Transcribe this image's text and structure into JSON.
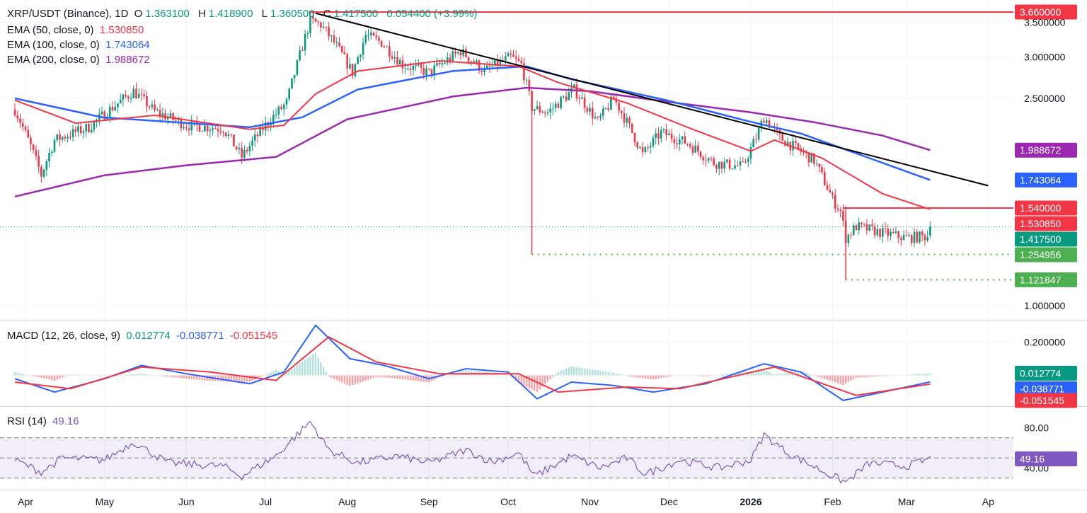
{
  "header": {
    "symbol": "XRP/USDT (Binance), 1D",
    "o_label": "O",
    "o_value": "1.363100",
    "h_label": "H",
    "h_value": "1.418900",
    "l_label": "L",
    "l_value": "1.360500",
    "c_label": "C",
    "c_value": "1.417500",
    "change": "0.054400 (+3.99%)"
  },
  "indicators": {
    "ema50": {
      "label": "EMA (50, close, 0)",
      "value": "1.530850",
      "color": "#f23645"
    },
    "ema100": {
      "label": "EMA (100, close, 0)",
      "value": "1.743064",
      "color": "#2962ff"
    },
    "ema200": {
      "label": "EMA (200, close, 0)",
      "value": "1.988672",
      "color": "#9c27b0"
    },
    "macd": {
      "label": "MACD (12, 26, close, 9)",
      "hist": "0.012774",
      "macd": "-0.038771",
      "signal": "-0.051545"
    },
    "rsi": {
      "label": "RSI (14)",
      "value": "49.16",
      "color": "#7e57c2"
    }
  },
  "colors": {
    "up": "#089981",
    "down": "#f23645",
    "trend": "#000000",
    "support": "#4caf50"
  },
  "chart_data": {
    "type": "candlestick",
    "x_ticks": [
      "Apr",
      "May",
      "Jun",
      "Jul",
      "Aug",
      "Sep",
      "Oct",
      "Nov",
      "Dec",
      "2026",
      "Feb",
      "Mar",
      "Ap"
    ],
    "price_ticks": [
      "3.500000",
      "3.000000",
      "2.500000",
      "1.000000"
    ],
    "price_scale": "log",
    "price_range": [
      0.94,
      3.8
    ],
    "price_tags": [
      {
        "label": "3.660000",
        "value": 3.66,
        "color": "#f23645"
      },
      {
        "label": "1.988672",
        "value": 1.988672,
        "color": "#9c27b0"
      },
      {
        "label": "1.743064",
        "value": 1.743064,
        "color": "#2962ff"
      },
      {
        "label": "1.540000",
        "value": 1.54,
        "color": "#f23645"
      },
      {
        "label": "1.530850",
        "value": 1.53085,
        "color": "#f23645"
      },
      {
        "label": "1.417500",
        "value": 1.4175,
        "color": "#089981"
      },
      {
        "label": "1.254956",
        "value": 1.254956,
        "color": "#4caf50"
      },
      {
        "label": "1.121847",
        "value": 1.121847,
        "color": "#4caf50"
      }
    ],
    "levels": [
      {
        "name": "resistance-high",
        "value": 3.66,
        "from": "2025-07-18",
        "to": "2026-04-10"
      },
      {
        "name": "resistance-1.54",
        "value": 1.54,
        "from": "2026-02-05",
        "to": "2026-04-10"
      },
      {
        "name": "support-1.2549",
        "value": 1.254956,
        "from": "2025-10-10",
        "to": "2026-04-10"
      },
      {
        "name": "support-1.1218",
        "value": 1.121847,
        "from": "2026-02-06",
        "to": "2026-04-10"
      }
    ],
    "trendline": {
      "from": {
        "date": "2025-07-20",
        "price": 3.64
      },
      "to": {
        "date": "2026-04-01",
        "price": 1.7
      }
    },
    "price_path": [
      [
        "2025-03-28",
        2.38
      ],
      [
        "2025-04-07",
        1.78
      ],
      [
        "2025-04-12",
        2.08
      ],
      [
        "2025-04-25",
        2.2
      ],
      [
        "2025-05-12",
        2.58
      ],
      [
        "2025-05-20",
        2.36
      ],
      [
        "2025-06-01",
        2.22
      ],
      [
        "2025-06-15",
        2.19
      ],
      [
        "2025-06-22",
        1.93
      ],
      [
        "2025-07-01",
        2.22
      ],
      [
        "2025-07-09",
        2.45
      ],
      [
        "2025-07-13",
        2.9
      ],
      [
        "2025-07-18",
        3.52
      ],
      [
        "2025-07-22",
        3.46
      ],
      [
        "2025-07-27",
        3.2
      ],
      [
        "2025-08-03",
        2.8
      ],
      [
        "2025-08-08",
        3.3
      ],
      [
        "2025-08-14",
        3.2
      ],
      [
        "2025-08-22",
        2.9
      ],
      [
        "2025-09-01",
        2.8
      ],
      [
        "2025-09-13",
        3.08
      ],
      [
        "2025-09-22",
        2.82
      ],
      [
        "2025-10-02",
        3.0
      ],
      [
        "2025-10-06",
        2.9
      ],
      [
        "2025-10-10",
        2.4
      ],
      [
        "2025-10-16",
        2.35
      ],
      [
        "2025-10-26",
        2.6
      ],
      [
        "2025-11-04",
        2.25
      ],
      [
        "2025-11-10",
        2.5
      ],
      [
        "2025-11-21",
        1.95
      ],
      [
        "2025-11-28",
        2.15
      ],
      [
        "2025-12-08",
        2.05
      ],
      [
        "2025-12-18",
        1.88
      ],
      [
        "2025-12-29",
        1.85
      ],
      [
        "2026-01-03",
        2.1
      ],
      [
        "2026-01-06",
        2.3
      ],
      [
        "2026-01-12",
        2.1
      ],
      [
        "2026-01-25",
        1.9
      ],
      [
        "2026-02-01",
        1.6
      ],
      [
        "2026-02-04",
        1.52
      ],
      [
        "2026-02-06",
        1.35
      ],
      [
        "2026-02-10",
        1.42
      ],
      [
        "2026-02-20",
        1.38
      ],
      [
        "2026-03-01",
        1.35
      ],
      [
        "2026-03-09",
        1.36
      ],
      [
        "2026-03-10",
        1.4175
      ]
    ],
    "ema50_path": [
      [
        "2025-03-28",
        2.48
      ],
      [
        "2025-04-20",
        2.24
      ],
      [
        "2025-05-20",
        2.32
      ],
      [
        "2025-06-25",
        2.18
      ],
      [
        "2025-07-08",
        2.22
      ],
      [
        "2025-07-20",
        2.55
      ],
      [
        "2025-08-05",
        2.82
      ],
      [
        "2025-09-05",
        2.95
      ],
      [
        "2025-10-05",
        2.88
      ],
      [
        "2025-10-20",
        2.68
      ],
      [
        "2025-11-15",
        2.45
      ],
      [
        "2025-12-10",
        2.18
      ],
      [
        "2026-01-01",
        1.98
      ],
      [
        "2026-01-10",
        2.08
      ],
      [
        "2026-01-28",
        1.92
      ],
      [
        "2026-02-20",
        1.64
      ],
      [
        "2026-03-10",
        1.53085
      ]
    ],
    "ema100_path": [
      [
        "2025-03-28",
        2.5
      ],
      [
        "2025-04-30",
        2.3
      ],
      [
        "2025-06-25",
        2.2
      ],
      [
        "2025-07-15",
        2.3
      ],
      [
        "2025-08-05",
        2.6
      ],
      [
        "2025-09-10",
        2.82
      ],
      [
        "2025-10-08",
        2.88
      ],
      [
        "2025-10-25",
        2.72
      ],
      [
        "2025-11-30",
        2.48
      ],
      [
        "2025-12-31",
        2.26
      ],
      [
        "2026-01-20",
        2.14
      ],
      [
        "2026-02-15",
        1.92
      ],
      [
        "2026-03-10",
        1.743064
      ]
    ],
    "ema200_path": [
      [
        "2025-03-28",
        1.62
      ],
      [
        "2025-05-01",
        1.78
      ],
      [
        "2025-06-01",
        1.86
      ],
      [
        "2025-07-05",
        1.93
      ],
      [
        "2025-08-01",
        2.28
      ],
      [
        "2025-09-10",
        2.52
      ],
      [
        "2025-10-08",
        2.62
      ],
      [
        "2025-11-01",
        2.58
      ],
      [
        "2025-12-01",
        2.46
      ],
      [
        "2026-01-01",
        2.35
      ],
      [
        "2026-01-25",
        2.25
      ],
      [
        "2026-02-20",
        2.12
      ],
      [
        "2026-03-10",
        1.988672
      ]
    ],
    "macd_ticks": [
      "0.200000"
    ],
    "macd_range": [
      -0.18,
      0.32
    ],
    "macd_tags": [
      {
        "label": "0.012774",
        "color": "#089981"
      },
      {
        "label": "-0.038771",
        "color": "#2962ff"
      },
      {
        "label": "-0.051545",
        "color": "#f23645"
      }
    ],
    "macd_path": [
      [
        "2025-03-28",
        -0.02
      ],
      [
        "2025-04-12",
        -0.1
      ],
      [
        "2025-05-01",
        -0.02
      ],
      [
        "2025-05-15",
        0.06
      ],
      [
        "2025-06-01",
        0.01
      ],
      [
        "2025-06-25",
        -0.05
      ],
      [
        "2025-07-08",
        0.02
      ],
      [
        "2025-07-20",
        0.3
      ],
      [
        "2025-08-02",
        0.1
      ],
      [
        "2025-08-15",
        0.06
      ],
      [
        "2025-09-01",
        -0.02
      ],
      [
        "2025-09-15",
        0.04
      ],
      [
        "2025-10-01",
        0.02
      ],
      [
        "2025-10-12",
        -0.14
      ],
      [
        "2025-10-25",
        -0.04
      ],
      [
        "2025-11-10",
        -0.06
      ],
      [
        "2025-11-25",
        -0.1
      ],
      [
        "2025-12-15",
        -0.05
      ],
      [
        "2026-01-06",
        0.07
      ],
      [
        "2026-01-20",
        0.02
      ],
      [
        "2026-02-05",
        -0.15
      ],
      [
        "2026-02-20",
        -0.1
      ],
      [
        "2026-03-10",
        -0.038771
      ]
    ],
    "signal_path": [
      [
        "2025-03-28",
        -0.04
      ],
      [
        "2025-04-18",
        -0.08
      ],
      [
        "2025-05-15",
        0.05
      ],
      [
        "2025-06-10",
        0.02
      ],
      [
        "2025-07-05",
        -0.03
      ],
      [
        "2025-07-25",
        0.23
      ],
      [
        "2025-08-12",
        0.08
      ],
      [
        "2025-09-05",
        0.01
      ],
      [
        "2025-10-05",
        0.01
      ],
      [
        "2025-10-20",
        -0.1
      ],
      [
        "2025-11-15",
        -0.07
      ],
      [
        "2025-12-05",
        -0.08
      ],
      [
        "2026-01-10",
        0.05
      ],
      [
        "2026-02-10",
        -0.12
      ],
      [
        "2026-03-10",
        -0.051545
      ]
    ],
    "rsi_ticks": [
      "80.00",
      "40.00"
    ],
    "rsi_range": [
      20,
      100
    ],
    "rsi_bands": [
      70,
      30
    ],
    "rsi_path": [
      [
        "2025-03-28",
        48
      ],
      [
        "2025-04-07",
        36
      ],
      [
        "2025-04-15",
        50
      ],
      [
        "2025-05-01",
        48
      ],
      [
        "2025-05-12",
        66
      ],
      [
        "2025-05-25",
        45
      ],
      [
        "2025-06-15",
        42
      ],
      [
        "2025-06-22",
        32
      ],
      [
        "2025-07-05",
        52
      ],
      [
        "2025-07-18",
        86
      ],
      [
        "2025-07-25",
        58
      ],
      [
        "2025-08-05",
        45
      ],
      [
        "2025-08-20",
        52
      ],
      [
        "2025-09-01",
        45
      ],
      [
        "2025-09-15",
        58
      ],
      [
        "2025-09-25",
        46
      ],
      [
        "2025-10-05",
        55
      ],
      [
        "2025-10-11",
        32
      ],
      [
        "2025-10-25",
        52
      ],
      [
        "2025-11-05",
        40
      ],
      [
        "2025-11-15",
        50
      ],
      [
        "2025-11-22",
        34
      ],
      [
        "2025-12-05",
        48
      ],
      [
        "2025-12-20",
        40
      ],
      [
        "2026-01-01",
        48
      ],
      [
        "2026-01-06",
        73
      ],
      [
        "2026-01-15",
        55
      ],
      [
        "2026-02-01",
        32
      ],
      [
        "2026-02-06",
        26
      ],
      [
        "2026-02-15",
        45
      ],
      [
        "2026-03-01",
        42
      ],
      [
        "2026-03-10",
        49.16
      ]
    ]
  }
}
